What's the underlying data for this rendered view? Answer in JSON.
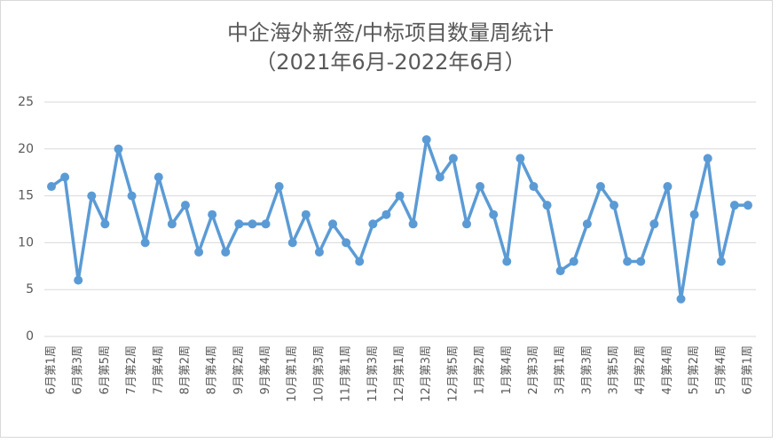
{
  "chart_data": {
    "type": "line",
    "title": "中企海外新签/中标项目数量周统计",
    "subtitle": "（2021年6月-2022年6月）",
    "categories": [
      "6月第1周",
      null,
      "6月第3周",
      null,
      "6月第5周",
      null,
      "7月第2周",
      null,
      "7月第4周",
      null,
      "8月第2周",
      null,
      "8月第4周",
      null,
      "9月第2周",
      null,
      "9月第4周",
      null,
      "10月第1周",
      null,
      "10月第3周",
      null,
      "11月第1周",
      null,
      "11月第3周",
      null,
      "12月第1周",
      null,
      "12月第3周",
      null,
      "12月第5周",
      null,
      "1月第2周",
      null,
      "1月第4周",
      null,
      "2月第3周",
      null,
      "3月第1周",
      null,
      "3月第3周",
      null,
      "3月第5周",
      null,
      "4月第2周",
      null,
      "4月第4周",
      null,
      "5月第2周",
      null,
      "5月第4周",
      null,
      "6月第1周"
    ],
    "series": [
      {
        "name": "项目数量",
        "color": "#5b9bd5",
        "values": [
          16,
          17,
          6,
          15,
          12,
          20,
          15,
          10,
          17,
          12,
          14,
          9,
          13,
          9,
          12,
          12,
          12,
          16,
          10,
          13,
          9,
          12,
          10,
          8,
          12,
          13,
          15,
          12,
          21,
          17,
          19,
          12,
          16,
          13,
          8,
          19,
          16,
          14,
          7,
          8,
          12,
          16,
          14,
          8,
          8,
          12,
          16,
          4,
          13,
          19,
          8,
          14,
          14
        ]
      }
    ],
    "ylim": [
      0,
      25
    ],
    "yticks": [
      0,
      5,
      10,
      15,
      20,
      25
    ],
    "grid": true,
    "legend": false
  }
}
